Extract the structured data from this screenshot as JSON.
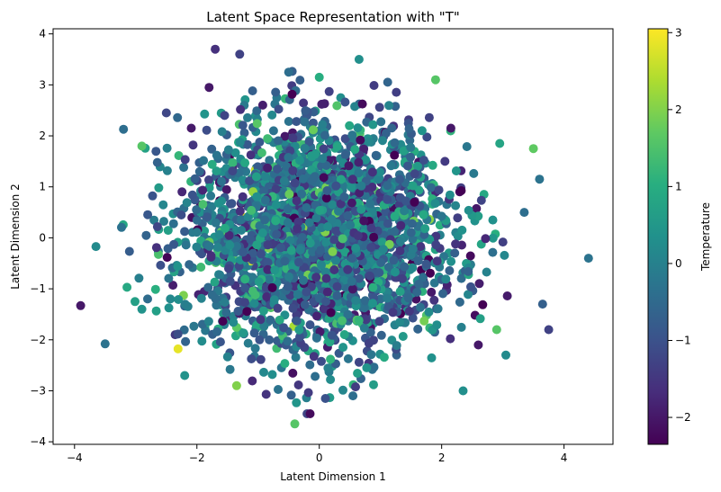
{
  "chart_data": {
    "type": "scatter",
    "title": "Latent Space Representation with \"T\"",
    "xlabel": "Latent Dimension 1",
    "ylabel": "Latent Dimension 2",
    "xlim": [
      -4.35,
      4.8
    ],
    "ylim": [
      -4.05,
      4.1
    ],
    "xticks": [
      -4,
      -2,
      0,
      2,
      4
    ],
    "yticks": [
      -4,
      -3,
      -2,
      -1,
      0,
      1,
      2,
      3,
      4
    ],
    "grid": false,
    "colorbar": {
      "label": "Temperature",
      "colormap": "viridis",
      "range": [
        -2.35,
        3.05
      ],
      "ticks": [
        -2,
        -1,
        0,
        1,
        2,
        3
      ]
    },
    "points": [
      {
        "x": -3.9,
        "y": -1.33,
        "c": -2.0
      },
      {
        "x": -3.65,
        "y": -0.17,
        "c": 0.2
      },
      {
        "x": -3.5,
        "y": -2.08,
        "c": -0.3
      },
      {
        "x": -3.2,
        "y": 2.13,
        "c": -0.4
      },
      {
        "x": -2.9,
        "y": 1.8,
        "c": 1.6
      },
      {
        "x": -2.9,
        "y": -1.4,
        "c": 0.4
      },
      {
        "x": -2.5,
        "y": 2.45,
        "c": -1.2
      },
      {
        "x": -2.2,
        "y": -2.7,
        "c": 0.4
      },
      {
        "x": -1.7,
        "y": 3.7,
        "c": -1.6
      },
      {
        "x": -1.8,
        "y": 2.95,
        "c": -2.0
      },
      {
        "x": -1.3,
        "y": 3.6,
        "c": -1.3
      },
      {
        "x": -1.35,
        "y": -2.9,
        "c": 2.0
      },
      {
        "x": -0.5,
        "y": 3.25,
        "c": -0.4
      },
      {
        "x": 0.0,
        "y": 3.15,
        "c": 1.0
      },
      {
        "x": 0.65,
        "y": 3.5,
        "c": 0.3
      },
      {
        "x": -0.4,
        "y": -3.65,
        "c": 1.6
      },
      {
        "x": -0.2,
        "y": -3.45,
        "c": -1.2
      },
      {
        "x": -0.15,
        "y": -3.45,
        "c": -2.2
      },
      {
        "x": 0.1,
        "y": -3.15,
        "c": -1.0
      },
      {
        "x": 0.55,
        "y": -3.1,
        "c": -0.4
      },
      {
        "x": 1.9,
        "y": 3.1,
        "c": 1.6
      },
      {
        "x": 2.15,
        "y": 2.15,
        "c": -2.0
      },
      {
        "x": 2.35,
        "y": -3.0,
        "c": 0.3
      },
      {
        "x": 3.5,
        "y": 1.75,
        "c": 1.7
      },
      {
        "x": 3.6,
        "y": 1.15,
        "c": -0.3
      },
      {
        "x": 3.35,
        "y": 0.5,
        "c": -0.4
      },
      {
        "x": 3.65,
        "y": -1.3,
        "c": -0.7
      },
      {
        "x": 3.75,
        "y": -1.8,
        "c": -1.3
      },
      {
        "x": 4.4,
        "y": -0.4,
        "c": -0.3
      },
      {
        "x": 3.05,
        "y": -2.3,
        "c": 0.2
      },
      {
        "x": 2.95,
        "y": 1.85,
        "c": 0.8
      },
      {
        "x": 2.9,
        "y": -1.8,
        "c": 1.6
      },
      {
        "x": 2.6,
        "y": -2.1,
        "c": -2.0
      }
    ]
  }
}
